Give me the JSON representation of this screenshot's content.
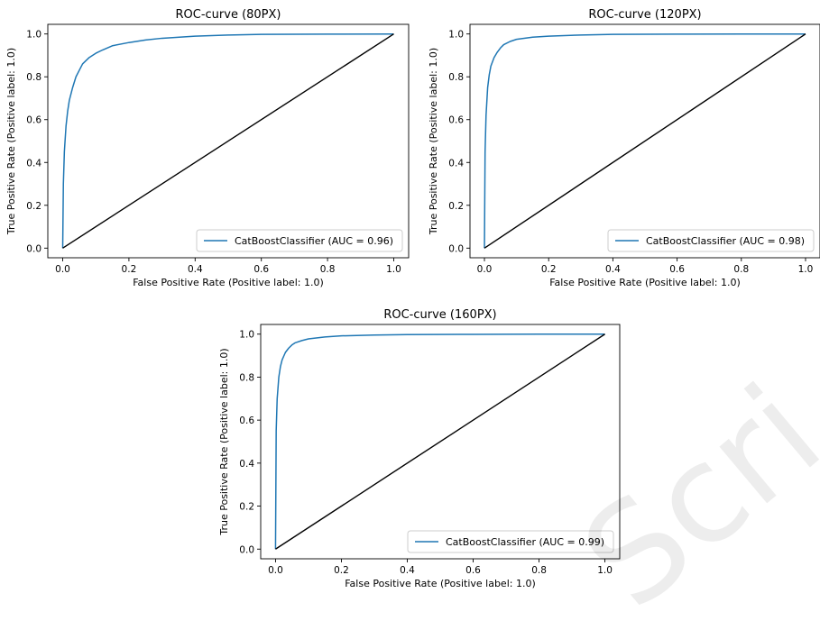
{
  "watermark": "Scri",
  "style": {
    "curve_color": "#1f77b4",
    "diagonal_color": "#000000"
  },
  "chart_data": [
    {
      "type": "line",
      "title": "ROC-curve (80PX)",
      "xlabel": "False Positive Rate (Positive label: 1.0)",
      "ylabel": "True Positive Rate (Positive label: 1.0)",
      "xlim": [
        0,
        1
      ],
      "ylim": [
        0,
        1
      ],
      "xticks": [
        "0.0",
        "0.2",
        "0.4",
        "0.6",
        "0.8",
        "1.0"
      ],
      "yticks": [
        "0.0",
        "0.2",
        "0.4",
        "0.6",
        "0.8",
        "1.0"
      ],
      "legend_position": "lower-right",
      "series": [
        {
          "name": "CatBoostClassifier (AUC = 0.96)",
          "x": [
            0,
            0.002,
            0.005,
            0.01,
            0.015,
            0.02,
            0.03,
            0.04,
            0.05,
            0.06,
            0.08,
            0.1,
            0.12,
            0.15,
            0.2,
            0.25,
            0.3,
            0.4,
            0.5,
            0.6,
            0.8,
            1.0
          ],
          "y": [
            0,
            0.3,
            0.45,
            0.57,
            0.64,
            0.69,
            0.75,
            0.8,
            0.83,
            0.86,
            0.89,
            0.91,
            0.925,
            0.945,
            0.96,
            0.972,
            0.98,
            0.99,
            0.995,
            0.998,
            0.999,
            1.0
          ]
        },
        {
          "name": "",
          "x": [
            0,
            1
          ],
          "y": [
            0,
            1
          ]
        }
      ]
    },
    {
      "type": "line",
      "title": "ROC-curve (120PX)",
      "xlabel": "False Positive Rate (Positive label: 1.0)",
      "ylabel": "True Positive Rate (Positive label: 1.0)",
      "xlim": [
        0,
        1
      ],
      "ylim": [
        0,
        1
      ],
      "xticks": [
        "0.0",
        "0.2",
        "0.4",
        "0.6",
        "0.8",
        "1.0"
      ],
      "yticks": [
        "0.0",
        "0.2",
        "0.4",
        "0.6",
        "0.8",
        "1.0"
      ],
      "legend_position": "lower-right",
      "series": [
        {
          "name": "CatBoostClassifier (AUC = 0.98)",
          "x": [
            0,
            0.002,
            0.005,
            0.01,
            0.015,
            0.02,
            0.03,
            0.04,
            0.05,
            0.06,
            0.08,
            0.1,
            0.15,
            0.2,
            0.3,
            0.4,
            0.6,
            0.8,
            1.0
          ],
          "y": [
            0,
            0.45,
            0.62,
            0.75,
            0.81,
            0.85,
            0.89,
            0.915,
            0.935,
            0.95,
            0.965,
            0.975,
            0.985,
            0.99,
            0.995,
            0.998,
            0.999,
            1.0,
            1.0
          ]
        },
        {
          "name": "",
          "x": [
            0,
            1
          ],
          "y": [
            0,
            1
          ]
        }
      ]
    },
    {
      "type": "line",
      "title": "ROC-curve (160PX)",
      "xlabel": "False Positive Rate (Positive label: 1.0)",
      "ylabel": "True Positive Rate (Positive label: 1.0)",
      "xlim": [
        0,
        1
      ],
      "ylim": [
        0,
        1
      ],
      "xticks": [
        "0.0",
        "0.2",
        "0.4",
        "0.6",
        "0.8",
        "1.0"
      ],
      "yticks": [
        "0.0",
        "0.2",
        "0.4",
        "0.6",
        "0.8",
        "1.0"
      ],
      "legend_position": "lower-right",
      "series": [
        {
          "name": "CatBoostClassifier (AUC = 0.99)",
          "x": [
            0,
            0.002,
            0.005,
            0.01,
            0.015,
            0.02,
            0.03,
            0.04,
            0.05,
            0.06,
            0.08,
            0.1,
            0.15,
            0.2,
            0.3,
            0.4,
            0.6,
            0.8,
            1.0
          ],
          "y": [
            0,
            0.55,
            0.7,
            0.8,
            0.85,
            0.88,
            0.915,
            0.935,
            0.95,
            0.96,
            0.97,
            0.978,
            0.987,
            0.992,
            0.996,
            0.998,
            0.999,
            1.0,
            1.0
          ]
        },
        {
          "name": "",
          "x": [
            0,
            1
          ],
          "y": [
            0,
            1
          ]
        }
      ]
    }
  ]
}
